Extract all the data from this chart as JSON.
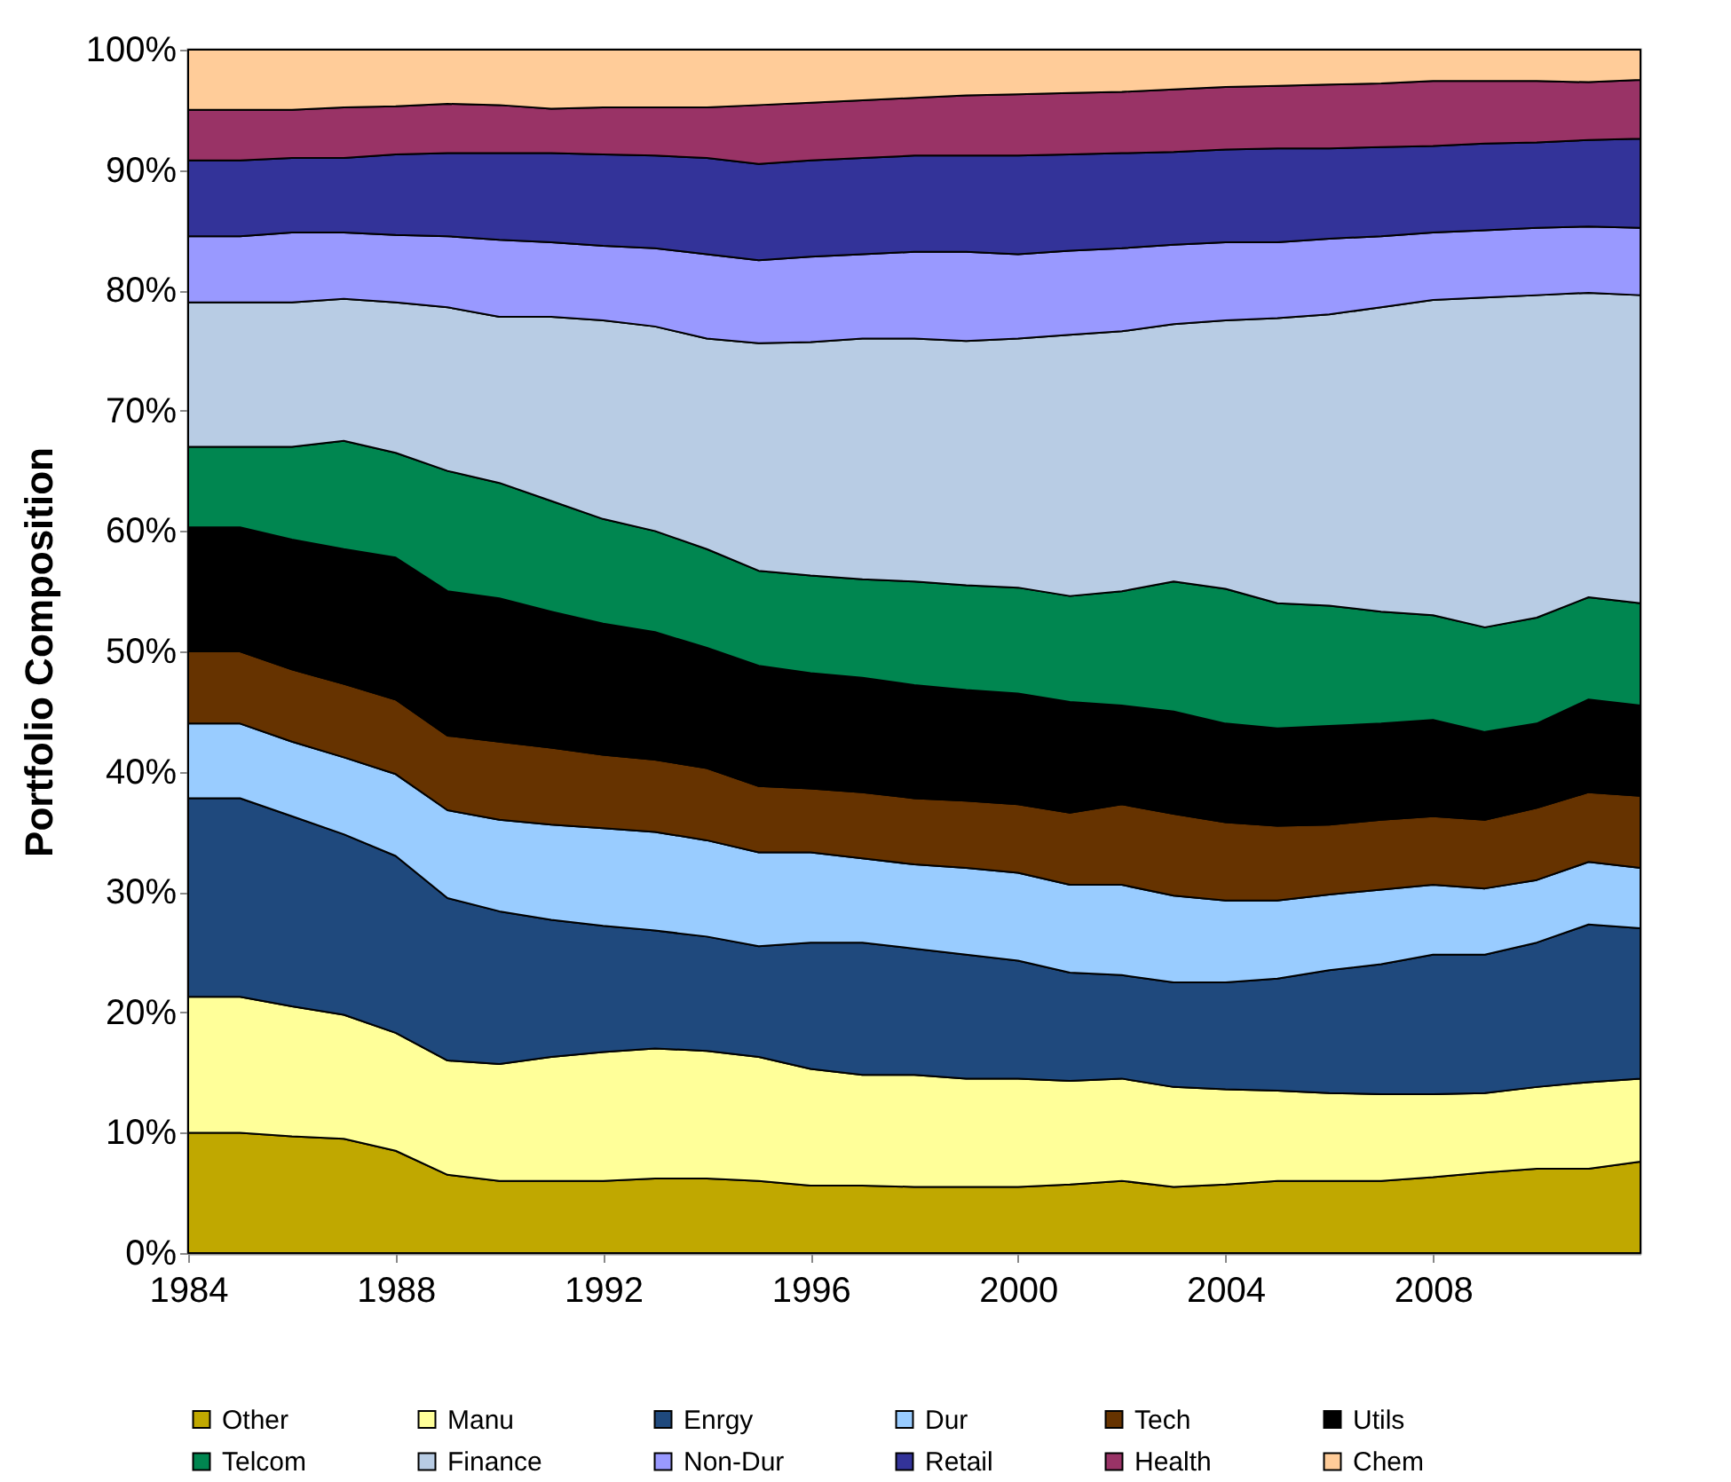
{
  "chart_data": {
    "type": "area",
    "stacked": true,
    "ylabel": "Portfolio Composition",
    "x": [
      1984,
      1985,
      1986,
      1987,
      1988,
      1989,
      1990,
      1991,
      1992,
      1993,
      1994,
      1995,
      1996,
      1997,
      1998,
      1999,
      2000,
      2001,
      2002,
      2003,
      2004,
      2005,
      2006,
      2007,
      2008,
      2009,
      2010,
      2011,
      2012
    ],
    "xlim": [
      1984,
      2012
    ],
    "xticks": [
      1984,
      1988,
      1992,
      1996,
      2000,
      2004,
      2008
    ],
    "ylim": [
      0,
      100
    ],
    "yticks": [
      {
        "value": 0,
        "label": "0%"
      },
      {
        "value": 10,
        "label": "10%"
      },
      {
        "value": 20,
        "label": "20%"
      },
      {
        "value": 30,
        "label": "30%"
      },
      {
        "value": 40,
        "label": "40%"
      },
      {
        "value": 50,
        "label": "50%"
      },
      {
        "value": 60,
        "label": "60%"
      },
      {
        "value": 70,
        "label": "70%"
      },
      {
        "value": 80,
        "label": "80%"
      },
      {
        "value": 90,
        "label": "90%"
      },
      {
        "value": 100,
        "label": "100%"
      }
    ],
    "legend": "bottom",
    "series": [
      {
        "name": "Other",
        "color": "#c0a800",
        "values": [
          10,
          10,
          9.7,
          9.5,
          8.5,
          6.5,
          6,
          6,
          6,
          6.2,
          6.2,
          6,
          5.6,
          5.6,
          5.5,
          5.5,
          5.5,
          5.7,
          6,
          5.5,
          5.7,
          6,
          6,
          6,
          6.3,
          6.7,
          7,
          7,
          7.6
        ]
      },
      {
        "name": "Manu",
        "color": "#ffff99",
        "values": [
          11.3,
          11.3,
          10.8,
          10.3,
          9.8,
          9.5,
          9.7,
          10.3,
          10.7,
          10.8,
          10.6,
          10.3,
          9.7,
          9.2,
          9.3,
          9,
          9,
          8.6,
          8.5,
          8.3,
          7.9,
          7.5,
          7.3,
          7.2,
          6.9,
          6.6,
          6.8,
          7.2,
          6.9
        ]
      },
      {
        "name": "Enrgy",
        "color": "#1f497d",
        "values": [
          16.5,
          16.5,
          15.8,
          15,
          14.7,
          13.5,
          12.7,
          11.4,
          10.5,
          9.8,
          9.5,
          9.2,
          10.5,
          11,
          10.5,
          10.3,
          9.8,
          9,
          8.6,
          8.7,
          8.9,
          9.3,
          10.2,
          10.8,
          11.6,
          11.5,
          12,
          13.1,
          12.5
        ]
      },
      {
        "name": "Dur",
        "color": "#99ccff",
        "values": [
          6.2,
          6.2,
          6.2,
          6.4,
          6.8,
          7.3,
          7.6,
          7.9,
          8.1,
          8.2,
          8,
          7.8,
          7.5,
          7,
          7,
          7.2,
          7.3,
          7.3,
          7.5,
          7.2,
          6.8,
          6.5,
          6.3,
          6.2,
          5.8,
          5.5,
          5.2,
          5.2,
          5
        ]
      },
      {
        "name": "Tech",
        "color": "#663300",
        "values": [
          6,
          6,
          6,
          6.1,
          6.2,
          6.2,
          6.5,
          6.4,
          6.1,
          6,
          6,
          5.5,
          5.3,
          5.5,
          5.5,
          5.6,
          5.7,
          6,
          6.7,
          6.8,
          6.5,
          6.2,
          5.8,
          5.8,
          5.7,
          5.7,
          6,
          5.8,
          6
        ]
      },
      {
        "name": "Utils",
        "color": "#000000",
        "values": [
          10.3,
          10.3,
          10.8,
          11.2,
          11.8,
          12,
          11.9,
          11.3,
          10.9,
          10.6,
          10,
          10,
          9.6,
          9.5,
          9.4,
          9.2,
          9.2,
          9.2,
          8.2,
          8.5,
          8.2,
          8.1,
          8.2,
          8,
          8,
          7.3,
          7,
          7.7,
          7.5
        ]
      },
      {
        "name": "Telcom",
        "color": "#008650",
        "values": [
          6.7,
          6.7,
          7.7,
          9,
          8.7,
          10,
          9.6,
          9.2,
          8.7,
          8.4,
          8.2,
          7.9,
          8.1,
          8.2,
          8.6,
          8.7,
          8.8,
          8.8,
          9.5,
          10.8,
          11.2,
          10.4,
          10,
          9.3,
          8.7,
          8.7,
          8.8,
          8.5,
          8.5
        ]
      },
      {
        "name": "Finance",
        "color": "#b8cce4",
        "values": [
          12,
          12,
          12,
          11.8,
          12.5,
          13.6,
          13.8,
          15.3,
          16.5,
          17,
          17.5,
          18.9,
          19.4,
          20,
          20.2,
          20.3,
          20.7,
          21.7,
          21.6,
          21.4,
          22.3,
          23.7,
          24.2,
          25.3,
          26.2,
          27.4,
          26.8,
          25.3,
          25.6
        ]
      },
      {
        "name": "Non-Dur",
        "color": "#9999ff",
        "values": [
          5.5,
          5.5,
          5.8,
          5.5,
          5.6,
          5.9,
          6.4,
          6.2,
          6.2,
          6.5,
          7,
          6.9,
          7.1,
          7,
          7.2,
          7.4,
          7,
          7,
          6.9,
          6.6,
          6.5,
          6.3,
          6.3,
          5.9,
          5.6,
          5.6,
          5.6,
          5.5,
          5.6
        ]
      },
      {
        "name": "Retail",
        "color": "#333399",
        "values": [
          6.3,
          6.3,
          6.2,
          6.2,
          6.7,
          6.9,
          7.2,
          7.4,
          7.6,
          7.7,
          8,
          8,
          8,
          8,
          8,
          8,
          8.2,
          8,
          7.9,
          7.7,
          7.7,
          7.8,
          7.5,
          7.4,
          7.2,
          7.2,
          7.1,
          7.2,
          7.4
        ]
      },
      {
        "name": "Health",
        "color": "#993366",
        "values": [
          4.2,
          4.2,
          4,
          4.2,
          4,
          4.1,
          4,
          3.7,
          3.9,
          4,
          4.2,
          4.9,
          4.8,
          4.8,
          4.8,
          5,
          5.1,
          5.1,
          5.1,
          5.2,
          5.2,
          5.2,
          5.3,
          5.3,
          5.4,
          5.2,
          5.1,
          4.8,
          4.9
        ]
      },
      {
        "name": "Chem",
        "color": "#ffcc99",
        "values": [
          5,
          5,
          5,
          4.8,
          4.7,
          4.5,
          4.6,
          4.9,
          4.8,
          4.8,
          4.8,
          4.6,
          4.4,
          4.2,
          4,
          3.8,
          3.7,
          3.6,
          3.5,
          3.3,
          3.1,
          3,
          2.9,
          2.8,
          2.6,
          2.6,
          2.6,
          2.7,
          2.5
        ]
      }
    ]
  }
}
